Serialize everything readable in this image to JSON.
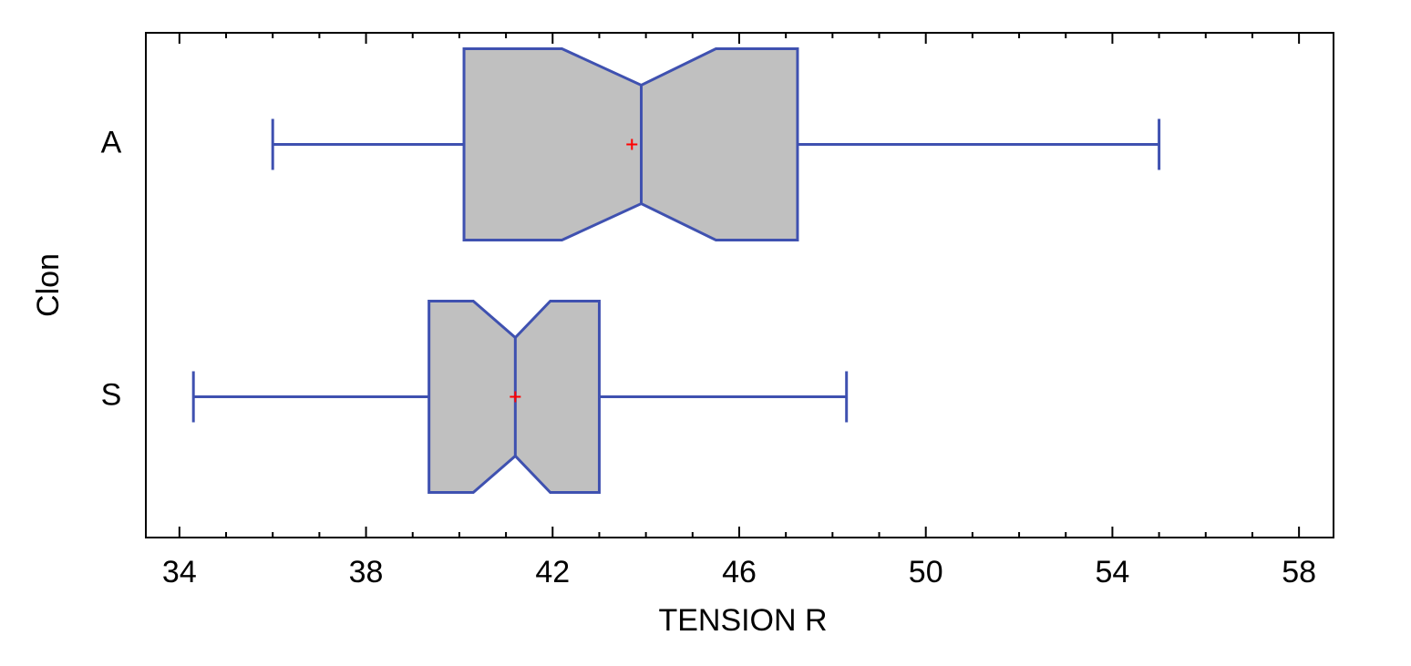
{
  "chart_data": {
    "type": "box",
    "orientation": "horizontal",
    "notched": true,
    "x_label": "TENSION R",
    "y_label": "Clon",
    "categories": [
      "A",
      "S"
    ],
    "boxes": [
      {
        "min": 36.0,
        "q1": 40.1,
        "notch_low": 42.2,
        "median": 43.9,
        "notch_high": 45.5,
        "q3": 47.25,
        "max": 55.0,
        "mean": 43.7
      },
      {
        "min": 34.3,
        "q1": 39.35,
        "notch_low": 40.3,
        "median": 41.2,
        "notch_high": 41.95,
        "q3": 43.0,
        "max": 48.3,
        "mean": 41.2
      }
    ],
    "xlim": [
      33.28,
      58.74
    ],
    "xticks": [
      34,
      38,
      42,
      46,
      50,
      54,
      58
    ],
    "xminorticks": [
      35,
      36,
      37,
      39,
      40,
      41,
      43,
      44,
      45,
      47,
      48,
      49,
      51,
      52,
      53,
      55,
      56,
      57
    ],
    "box_color": "#c0c0c0",
    "line_color": "#3f51b0",
    "mean_color": "#ff0000"
  }
}
